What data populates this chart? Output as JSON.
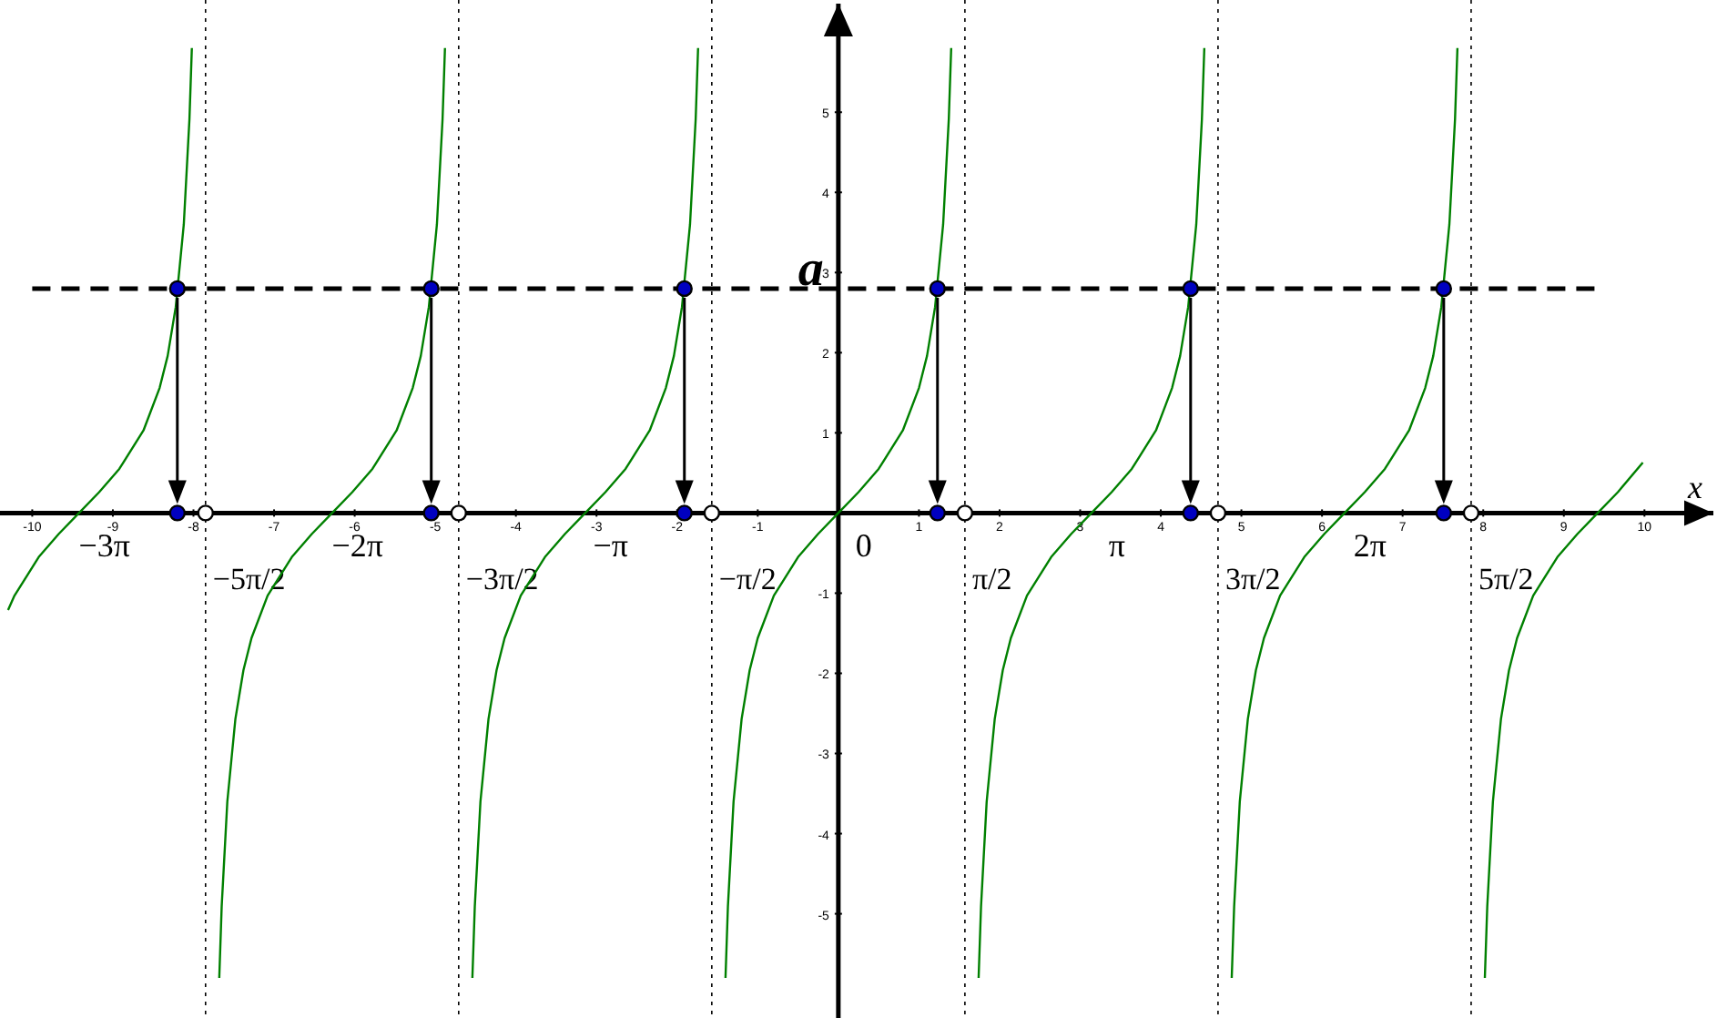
{
  "chart_data": {
    "type": "line",
    "xlabel": "x",
    "xlim": [
      -10.4,
      10.9
    ],
    "ylim": [
      -6.3,
      6.4
    ],
    "xticks": [
      -10,
      -9,
      -8,
      -7,
      -6,
      -5,
      -4,
      -3,
      -2,
      -1,
      1,
      2,
      3,
      4,
      5,
      6,
      7,
      8,
      9,
      10
    ],
    "yticks": [
      -5,
      -4,
      -3,
      -2,
      -1,
      1,
      2,
      3,
      4,
      5
    ],
    "grid": false,
    "series": [
      {
        "color": "#008000",
        "x": [
          -10.3,
          -10.22,
          -9.92,
          -9.67,
          -9.42,
          -9.17,
          -8.92,
          -8.62,
          -8.42,
          -8.32,
          -8.22,
          -8.12,
          -8.05,
          -8.02
        ],
        "values": [
          -1.21,
          -1.03,
          -0.55,
          -0.26,
          0,
          0.26,
          0.55,
          1.03,
          1.56,
          1.96,
          2.57,
          3.6,
          4.91,
          5.8
        ]
      },
      {
        "color": "#008000",
        "x": [
          -7.68,
          -7.65,
          -7.58,
          -7.48,
          -7.38,
          -7.28,
          -7.08,
          -6.78,
          -6.53,
          -6.28,
          -6.03,
          -5.78,
          -5.48,
          -5.28,
          -5.18,
          -5.08,
          -4.98,
          -4.91,
          -4.88
        ],
        "values": [
          -5.8,
          -4.91,
          -3.6,
          -2.57,
          -1.96,
          -1.56,
          -1.03,
          -0.55,
          -0.26,
          0,
          0.26,
          0.55,
          1.03,
          1.56,
          1.96,
          2.57,
          3.6,
          4.91,
          5.8
        ]
      },
      {
        "color": "#008000",
        "x": [
          -4.54,
          -4.51,
          -4.44,
          -4.34,
          -4.24,
          -4.14,
          -3.94,
          -3.64,
          -3.39,
          -3.14,
          -2.89,
          -2.64,
          -2.34,
          -2.14,
          -2.04,
          -1.94,
          -1.84,
          -1.77,
          -1.74
        ],
        "values": [
          -5.8,
          -4.91,
          -3.6,
          -2.57,
          -1.96,
          -1.56,
          -1.03,
          -0.55,
          -0.26,
          0,
          0.26,
          0.55,
          1.03,
          1.56,
          1.96,
          2.57,
          3.6,
          4.91,
          5.8
        ]
      },
      {
        "color": "#008000",
        "x": [
          -1.4,
          -1.37,
          -1.3,
          -1.2,
          -1.1,
          -1.0,
          -0.8,
          -0.5,
          -0.25,
          0,
          0.25,
          0.5,
          0.8,
          1.0,
          1.1,
          1.2,
          1.3,
          1.37,
          1.4
        ],
        "values": [
          -5.8,
          -4.91,
          -3.6,
          -2.57,
          -1.96,
          -1.56,
          -1.03,
          -0.55,
          -0.26,
          0,
          0.26,
          0.55,
          1.03,
          1.56,
          1.96,
          2.57,
          3.6,
          4.91,
          5.8
        ]
      },
      {
        "color": "#008000",
        "x": [
          1.74,
          1.77,
          1.84,
          1.94,
          2.04,
          2.14,
          2.34,
          2.64,
          2.89,
          3.14,
          3.39,
          3.64,
          3.94,
          4.14,
          4.24,
          4.34,
          4.44,
          4.51,
          4.54
        ],
        "values": [
          -5.8,
          -4.91,
          -3.6,
          -2.57,
          -1.96,
          -1.56,
          -1.03,
          -0.55,
          -0.26,
          0,
          0.26,
          0.55,
          1.03,
          1.56,
          1.96,
          2.57,
          3.6,
          4.91,
          5.8
        ]
      },
      {
        "color": "#008000",
        "x": [
          4.88,
          4.91,
          4.98,
          5.08,
          5.18,
          5.28,
          5.48,
          5.78,
          6.03,
          6.28,
          6.53,
          6.78,
          7.08,
          7.28,
          7.38,
          7.48,
          7.58,
          7.65,
          7.68
        ],
        "values": [
          -5.8,
          -4.91,
          -3.6,
          -2.57,
          -1.96,
          -1.56,
          -1.03,
          -0.55,
          -0.26,
          0,
          0.26,
          0.55,
          1.03,
          1.56,
          1.96,
          2.57,
          3.6,
          4.91,
          5.8
        ]
      },
      {
        "color": "#008000",
        "x": [
          8.02,
          8.05,
          8.12,
          8.22,
          8.32,
          8.42,
          8.62,
          8.92,
          9.17,
          9.42,
          9.67,
          9.98
        ],
        "values": [
          -5.8,
          -4.91,
          -3.6,
          -2.57,
          -1.96,
          -1.56,
          -1.03,
          -0.55,
          -0.26,
          0,
          0.26,
          0.63
        ]
      },
      {
        "type": "scatter",
        "marker": "circle",
        "color": "#0000c0",
        "x": [
          -8.2,
          -5.05,
          -1.91,
          1.23,
          4.37,
          7.51
        ],
        "values": [
          2.8,
          2.8,
          2.8,
          2.8,
          2.8,
          2.8
        ]
      },
      {
        "type": "scatter",
        "marker": "circle",
        "color": "#0000c0",
        "x": [
          -8.2,
          -5.05,
          -1.91,
          1.23,
          4.37,
          7.51
        ],
        "values": [
          0,
          0,
          0,
          0,
          0,
          0
        ]
      },
      {
        "type": "scatter",
        "marker": "circle",
        "color": "#ffffff",
        "x": [
          -7.85,
          -4.71,
          -1.57,
          1.57,
          4.71,
          7.85
        ],
        "values": [
          0,
          0,
          0,
          0,
          0,
          0
        ]
      }
    ],
    "ref_lines": [
      {
        "axis": "y",
        "value": 2.8,
        "label": "a",
        "line_style": "dashed",
        "color": "#000000"
      },
      {
        "axis": "x",
        "value": -7.85,
        "label": "−5π/2",
        "line_style": "dotted",
        "color": "#000000"
      },
      {
        "axis": "x",
        "value": -4.71,
        "label": "−3π/2",
        "line_style": "dotted",
        "color": "#000000"
      },
      {
        "axis": "x",
        "value": -1.57,
        "label": "−π/2",
        "line_style": "dotted",
        "color": "#000000"
      },
      {
        "axis": "x",
        "value": 1.57,
        "label": "π/2",
        "line_style": "dotted",
        "color": "#000000"
      },
      {
        "axis": "x",
        "value": 4.71,
        "label": "3π/2",
        "line_style": "dotted",
        "color": "#000000"
      },
      {
        "axis": "x",
        "value": 7.85,
        "label": "5π/2",
        "line_style": "dotted",
        "color": "#000000"
      }
    ],
    "annotations": [
      {
        "text": "−3π",
        "x": -9.42,
        "y": 0
      },
      {
        "text": "−2π",
        "x": -6.28,
        "y": 0
      },
      {
        "text": "−π",
        "x": -3.14,
        "y": 0
      },
      {
        "text": "0",
        "x": 0,
        "y": 0
      },
      {
        "text": "π",
        "x": 3.14,
        "y": 0
      },
      {
        "text": "2π",
        "x": 6.28,
        "y": 0
      }
    ]
  }
}
